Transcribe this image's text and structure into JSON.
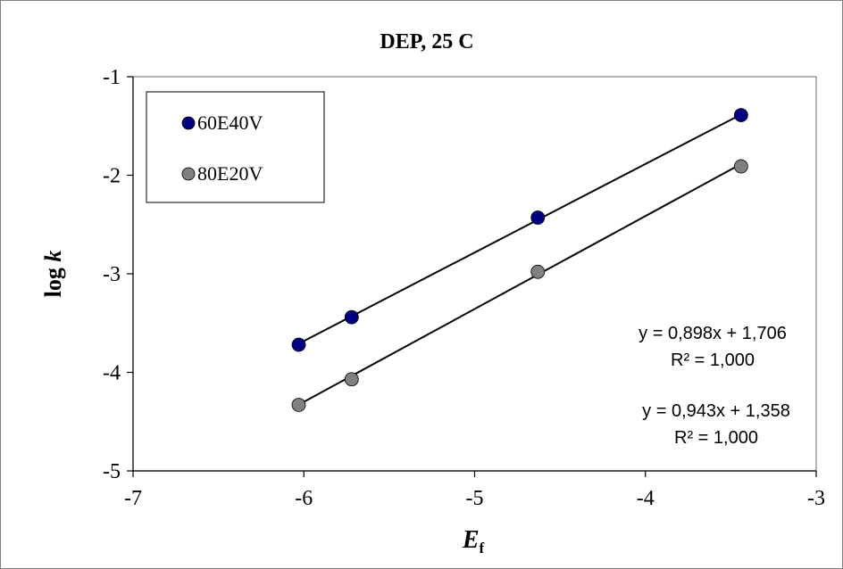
{
  "chart_data": {
    "type": "scatter",
    "title": "DEP, 25 C",
    "xlabel_main": "E",
    "xlabel_sub": "f",
    "ylabel_main": "log ",
    "ylabel_italic": "k",
    "xlim": [
      -7,
      -3
    ],
    "ylim": [
      -5,
      -1
    ],
    "xticks": [
      -7,
      -6,
      -5,
      -4,
      -3
    ],
    "yticks": [
      -5,
      -4,
      -3,
      -2,
      -1
    ],
    "xtick_labels": [
      "-7",
      "-6",
      "-5",
      "-4",
      "-3"
    ],
    "ytick_labels": [
      "-5",
      "-4",
      "-3",
      "-2",
      "-1"
    ],
    "grid": false,
    "legend_position": "top-left",
    "series": [
      {
        "name": "60E40V",
        "color": "#000080",
        "x": [
          -6.03,
          -5.72,
          -4.63,
          -3.44
        ],
        "y": [
          -3.72,
          -3.44,
          -2.43,
          -1.39
        ],
        "trendline": {
          "slope": 0.898,
          "intercept": 1.706
        },
        "equation": "y = 0,898x + 1,706",
        "r2": "R² = 1,000"
      },
      {
        "name": "80E20V",
        "color": "#808080",
        "x": [
          -6.03,
          -5.72,
          -4.63,
          -3.44
        ],
        "y": [
          -4.33,
          -4.07,
          -2.98,
          -1.91
        ],
        "trendline": {
          "slope": 0.943,
          "intercept": 1.358
        },
        "equation": "y = 0,943x + 1,358",
        "r2": "R² = 1,000"
      }
    ]
  }
}
